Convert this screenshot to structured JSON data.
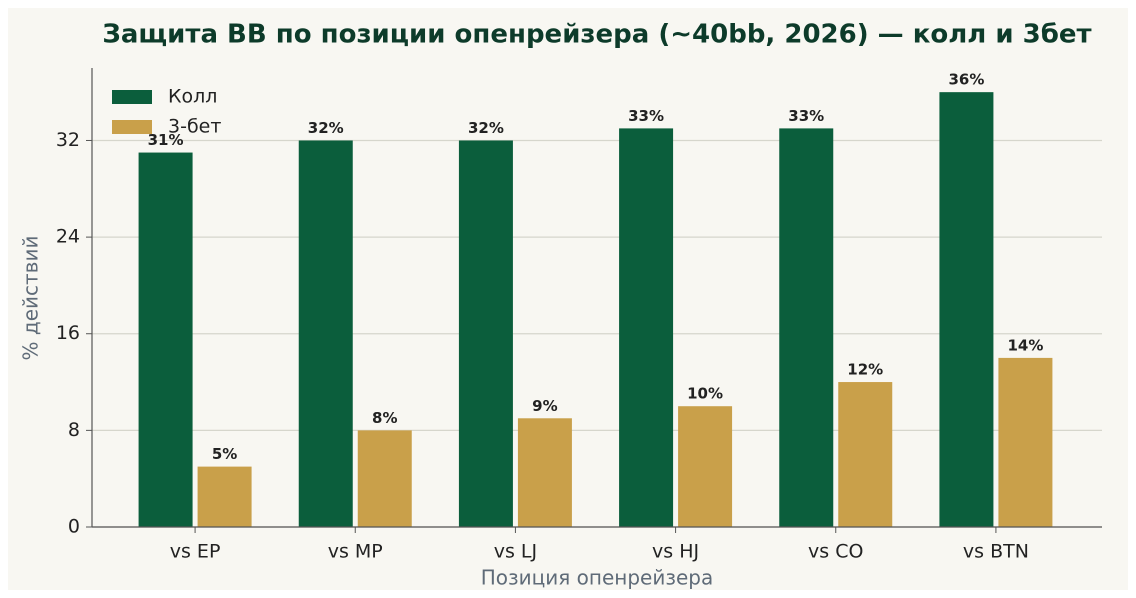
{
  "chart_data": {
    "type": "bar",
    "title": "Защита BB по позиции опенрейзера (~40bb, 2026) — колл и 3бет",
    "xlabel": "Позиция опенрейзера",
    "ylabel": "% действий",
    "categories": [
      "vs EP",
      "vs MP",
      "vs LJ",
      "vs HJ",
      "vs CO",
      "vs BTN"
    ],
    "series": [
      {
        "name": "Колл",
        "color": "#0b5e3c",
        "values": [
          31,
          32,
          32,
          33,
          33,
          36
        ],
        "value_labels": [
          "31%",
          "32%",
          "32%",
          "33%",
          "33%",
          "36%"
        ]
      },
      {
        "name": "3-бет",
        "color": "#c9a04a",
        "values": [
          5,
          8,
          9,
          10,
          12,
          14
        ],
        "value_labels": [
          "5%",
          "8%",
          "9%",
          "10%",
          "12%",
          "14%"
        ]
      }
    ],
    "ylim": [
      0,
      38
    ],
    "yticks": [
      0,
      8,
      16,
      24,
      32
    ],
    "grid": true,
    "legend": "upper left"
  }
}
